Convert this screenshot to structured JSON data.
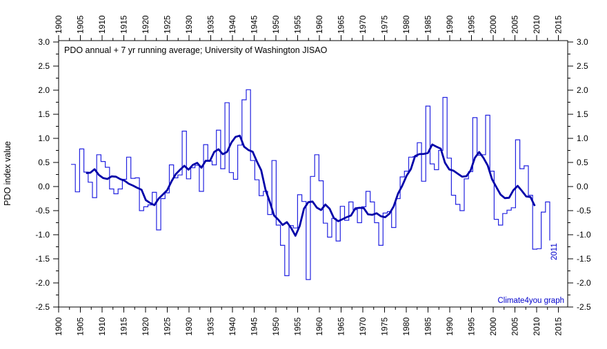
{
  "chart_data": {
    "type": "line",
    "title": "PDO annual + 7 yr running average; University of Washington JISAO",
    "ylabel": "PDO index value",
    "xlabel": "",
    "watermark": "Climate4you graph",
    "last_year_label": "2011",
    "grid": false,
    "legend_position": "none",
    "ylim": [
      -2.5,
      3.0
    ],
    "xlim": [
      1900,
      2017
    ],
    "y_major_ticks": [
      3.0,
      2.5,
      2.0,
      1.5,
      1.0,
      0.5,
      0.0,
      -0.5,
      -1.0,
      -1.5,
      -2.0,
      -2.5
    ],
    "y_minor_step": 0.25,
    "x_major_ticks": [
      1900,
      1905,
      1910,
      1915,
      1920,
      1925,
      1930,
      1935,
      1940,
      1945,
      1950,
      1955,
      1960,
      1965,
      1970,
      1975,
      1980,
      1985,
      1990,
      1995,
      2000,
      2005,
      2010,
      2015
    ],
    "x_minor_step": 2.5,
    "series": [
      {
        "name": "PDO annual",
        "style": "step",
        "color": "#2222e0",
        "start_year": 1900,
        "values": [
          0.46,
          -0.11,
          0.78,
          0.3,
          0.09,
          -0.23,
          0.66,
          0.52,
          0.4,
          -0.05,
          -0.15,
          -0.05,
          0.15,
          0.61,
          0.17,
          0.18,
          -0.5,
          -0.42,
          -0.38,
          -0.12,
          -0.9,
          -0.25,
          -0.13,
          0.45,
          0.18,
          0.24,
          1.15,
          0.16,
          0.39,
          0.44,
          -0.1,
          0.87,
          0.53,
          0.45,
          1.17,
          0.37,
          1.74,
          0.29,
          0.15,
          0.86,
          1.8,
          2.01,
          0.54,
          0.14,
          -0.19,
          -0.1,
          -0.58,
          0.54,
          -0.8,
          -1.22,
          -1.85,
          -0.81,
          -0.86,
          -0.17,
          -0.31,
          -1.93,
          0.21,
          0.66,
          0.12,
          -0.76,
          -1.05,
          -0.66,
          -1.13,
          -0.41,
          -0.7,
          -0.32,
          -0.48,
          -0.75,
          -0.42,
          -0.1,
          -0.32,
          -0.75,
          -1.22,
          -0.55,
          -0.52,
          -0.85,
          -0.25,
          0.2,
          0.32,
          0.61,
          0.62,
          0.91,
          0.11,
          1.67,
          0.47,
          0.35,
          0.75,
          1.85,
          0.59,
          -0.18,
          -0.37,
          -0.5,
          0.16,
          0.31,
          1.43,
          0.65,
          0.66,
          1.48,
          0.32,
          -0.68,
          -0.8,
          -0.56,
          -0.49,
          -0.44,
          0.97,
          0.37,
          0.43,
          -0.18,
          -1.3,
          -1.29,
          -0.53,
          -0.32
        ],
        "trailing_partial_value": -1.12
      },
      {
        "name": "7 yr running average",
        "style": "smooth",
        "color": "#0000a8",
        "derived": "centered 7-year mean of PDO annual values (1903-2008)"
      }
    ]
  },
  "colors": {
    "axis": "#000000",
    "tick_label": "#000000",
    "title_text": "#000000",
    "annotation_blue": "#0000cc",
    "background": "#ffffff"
  }
}
